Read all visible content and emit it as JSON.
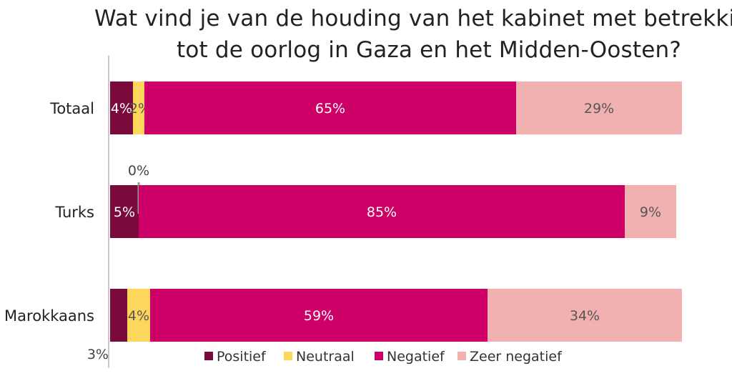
{
  "chart_data": {
    "type": "bar",
    "orientation": "horizontal",
    "stacked": true,
    "title_lines": [
      "Wat vind je van de houding van het kabinet met betrekking",
      "tot de oorlog in Gaza en het Midden-Oosten?"
    ],
    "categories": [
      "Totaal",
      "Turks",
      "Marokkaans"
    ],
    "series": [
      {
        "name": "Positief",
        "color": "#7a0a3c",
        "values": [
          4,
          5,
          3
        ],
        "labels": [
          "4%",
          "5%",
          "3%"
        ]
      },
      {
        "name": "Neutraal",
        "color": "#fdd65c",
        "values": [
          2,
          0,
          4
        ],
        "labels": [
          "2%",
          "0%",
          "4%"
        ]
      },
      {
        "name": "Negatief",
        "color": "#cc0066",
        "values": [
          65,
          85,
          59
        ],
        "labels": [
          "65%",
          "85%",
          "59%"
        ]
      },
      {
        "name": "Zeer negatief",
        "color": "#f2b1b1",
        "values": [
          29,
          9,
          34
        ],
        "labels": [
          "29%",
          "9%",
          "34%"
        ]
      }
    ],
    "xlim": [
      0,
      100
    ],
    "legend_position": "bottom",
    "grid": false
  }
}
